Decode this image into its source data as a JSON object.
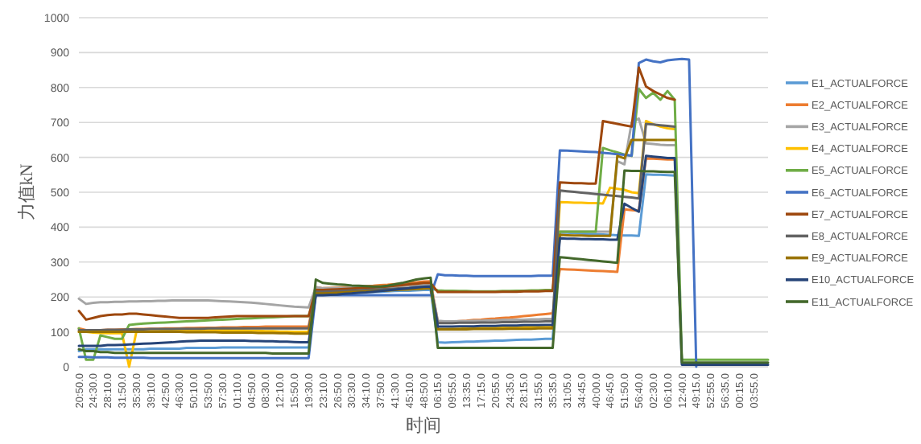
{
  "chart_data": {
    "type": "line",
    "xlabel": "时间",
    "ylabel": "力值kN",
    "categories": [
      "20:50.0",
      null,
      "24:30.0",
      null,
      "28:10.0",
      null,
      "31:50.0",
      null,
      "35:30.0",
      null,
      "39:10.0",
      null,
      "42:50.0",
      null,
      "46:30.0",
      null,
      "50:10.0",
      null,
      "53:50.0",
      null,
      "57:30.0",
      null,
      "01:10.0",
      null,
      "04:50.0",
      null,
      "08:30.0",
      null,
      "12:10.0",
      null,
      "15:50.0",
      null,
      "19:30.0",
      null,
      "23:10.0",
      null,
      "26:50.0",
      null,
      "30:30.0",
      null,
      "34:10.0",
      null,
      "37:50.0",
      null,
      "41:30.0",
      null,
      "45:10.0",
      null,
      "48:50.0",
      null,
      "06:15.0",
      null,
      "09:55.0",
      null,
      "13:35.0",
      null,
      "17:15.0",
      null,
      "20:55.0",
      null,
      "24:35.0",
      null,
      "28:15.0",
      null,
      "31:55.0",
      null,
      "35:35.0",
      null,
      "31:05.0",
      null,
      "34:45.0",
      null,
      "40:00.0",
      null,
      "46:45.0",
      null,
      "51:50.0",
      null,
      "56:40.0",
      null,
      "02:30.0",
      null,
      "06:10.0",
      null,
      "12:40.0",
      null,
      "49:15.0",
      null,
      "52:55.0",
      null,
      "56:35.0",
      null,
      "00:15.0",
      null,
      "03:55.0",
      null,
      null
    ],
    "series": [
      {
        "name": "E1_ACTUALFORCE",
        "color": "#5b9bd5",
        "values": [
          45,
          50,
          50,
          50,
          50,
          50,
          50,
          50,
          50,
          50,
          52,
          52,
          52,
          52,
          52,
          54,
          54,
          54,
          54,
          54,
          55,
          55,
          55,
          55,
          55,
          55,
          55,
          55,
          55,
          55,
          55,
          55,
          55,
          210,
          210,
          211,
          212,
          212,
          213,
          213,
          214,
          214,
          215,
          216,
          217,
          218,
          218,
          219,
          220,
          220,
          70,
          69,
          70,
          71,
          72,
          72,
          73,
          74,
          75,
          75,
          76,
          77,
          78,
          78,
          79,
          80,
          80,
          385,
          384,
          383,
          382,
          381,
          380,
          379,
          378,
          377,
          376,
          376,
          375,
          551,
          550,
          550,
          549,
          548,
          null,
          null,
          null,
          null,
          null,
          null,
          null,
          null,
          null,
          null,
          null,
          null,
          null
        ]
      },
      {
        "name": "E2_ACTUALFORCE",
        "color": "#ed7d31",
        "values": [
          110,
          105,
          105,
          105,
          106,
          106,
          107,
          107,
          108,
          108,
          109,
          109,
          110,
          110,
          110,
          111,
          111,
          112,
          112,
          112,
          113,
          113,
          113,
          114,
          114,
          114,
          115,
          115,
          115,
          115,
          115,
          115,
          115,
          228,
          225,
          226,
          227,
          228,
          229,
          230,
          231,
          232,
          234,
          235,
          237,
          238,
          240,
          242,
          244,
          245,
          127,
          128,
          129,
          131,
          132,
          134,
          135,
          137,
          138,
          140,
          141,
          143,
          145,
          147,
          149,
          151,
          153,
          280,
          279,
          278,
          277,
          276,
          275,
          274,
          273,
          272,
          451,
          449,
          447,
          597,
          596,
          595,
          594,
          594,
          null,
          null,
          null,
          null,
          null,
          null,
          null,
          null,
          null,
          null,
          null,
          null,
          null
        ]
      },
      {
        "name": "E3_ACTUALFORCE",
        "color": "#a5a5a5",
        "values": [
          195,
          180,
          183,
          185,
          185,
          186,
          186,
          187,
          187,
          188,
          188,
          189,
          189,
          190,
          190,
          190,
          190,
          190,
          190,
          189,
          188,
          187,
          186,
          185,
          184,
          182,
          180,
          178,
          176,
          174,
          172,
          171,
          170,
          228,
          225,
          225,
          226,
          226,
          227,
          227,
          228,
          229,
          229,
          230,
          231,
          232,
          233,
          234,
          235,
          235,
          132,
          130,
          130,
          131,
          131,
          132,
          132,
          133,
          133,
          134,
          134,
          135,
          135,
          136,
          136,
          137,
          137,
          387,
          387,
          387,
          387,
          387,
          387,
          387,
          387,
          589,
          580,
          700,
          711,
          640,
          638,
          636,
          635,
          635,
          null,
          null,
          null,
          null,
          null,
          null,
          null,
          null,
          null,
          null,
          null,
          null,
          null
        ]
      },
      {
        "name": "E4_ACTUALFORCE",
        "color": "#ffc000",
        "values": [
          100,
          100,
          98,
          97,
          96,
          96,
          96,
          0,
          100,
          101,
          102,
          102,
          103,
          103,
          104,
          104,
          105,
          105,
          105,
          105,
          105,
          105,
          104,
          104,
          103,
          103,
          102,
          102,
          101,
          101,
          100,
          100,
          100,
          210,
          210,
          211,
          212,
          213,
          214,
          215,
          216,
          217,
          218,
          219,
          220,
          221,
          222,
          223,
          224,
          225,
          108,
          108,
          109,
          109,
          110,
          110,
          111,
          111,
          112,
          112,
          113,
          113,
          114,
          114,
          115,
          115,
          116,
          472,
          471,
          470,
          470,
          469,
          469,
          468,
          513,
          510,
          507,
          500,
          497,
          704,
          695,
          688,
          683,
          681,
          null,
          null,
          null,
          null,
          null,
          null,
          null,
          null,
          null,
          null,
          null,
          null,
          null
        ]
      },
      {
        "name": "E5_ACTUALFORCE",
        "color": "#70ad47",
        "values": [
          110,
          20,
          20,
          90,
          85,
          80,
          80,
          120,
          122,
          124,
          125,
          126,
          127,
          128,
          129,
          130,
          131,
          132,
          133,
          134,
          135,
          136,
          137,
          138,
          139,
          140,
          141,
          142,
          143,
          144,
          145,
          145,
          145,
          215,
          215,
          216,
          217,
          217,
          218,
          219,
          219,
          220,
          221,
          221,
          222,
          223,
          223,
          224,
          225,
          225,
          219,
          218,
          218,
          217,
          217,
          216,
          216,
          216,
          216,
          217,
          217,
          218,
          218,
          219,
          219,
          220,
          220,
          387,
          387,
          387,
          387,
          387,
          387,
          627,
          620,
          614,
          608,
          604,
          796,
          770,
          785,
          765,
          790,
          765,
          20,
          20,
          20,
          20,
          20,
          20,
          20,
          20,
          20,
          20,
          20,
          20,
          20
        ]
      },
      {
        "name": "E6_ACTUALFORCE",
        "color": "#4472c4",
        "values": [
          28,
          28,
          27,
          27,
          27,
          26,
          26,
          26,
          26,
          26,
          25,
          25,
          25,
          25,
          25,
          25,
          25,
          25,
          25,
          25,
          25,
          25,
          25,
          25,
          25,
          25,
          25,
          25,
          25,
          25,
          25,
          25,
          25,
          205,
          205,
          205,
          205,
          205,
          205,
          205,
          205,
          205,
          205,
          205,
          205,
          205,
          205,
          205,
          205,
          205,
          265,
          262,
          262,
          261,
          261,
          260,
          260,
          260,
          260,
          260,
          260,
          260,
          260,
          260,
          261,
          261,
          261,
          620,
          619,
          618,
          617,
          616,
          615,
          613,
          611,
          609,
          607,
          605,
          870,
          880,
          875,
          872,
          878,
          880,
          882,
          880,
          0,
          null,
          null,
          null,
          null,
          null,
          null,
          null,
          null,
          null,
          null
        ]
      },
      {
        "name": "E7_ACTUALFORCE",
        "color": "#9e480e",
        "values": [
          160,
          135,
          140,
          145,
          148,
          150,
          150,
          152,
          152,
          150,
          148,
          146,
          144,
          142,
          140,
          140,
          140,
          140,
          140,
          142,
          143,
          144,
          145,
          145,
          145,
          145,
          145,
          145,
          145,
          145,
          145,
          145,
          145,
          220,
          220,
          221,
          222,
          223,
          224,
          225,
          226,
          227,
          228,
          230,
          232,
          234,
          236,
          238,
          240,
          240,
          214,
          214,
          214,
          214,
          214,
          214,
          214,
          214,
          214,
          215,
          215,
          215,
          216,
          216,
          216,
          217,
          217,
          528,
          527,
          526,
          526,
          525,
          525,
          704,
          700,
          696,
          692,
          688,
          857,
          803,
          790,
          780,
          770,
          765,
          null,
          null,
          null,
          null,
          null,
          null,
          null,
          null,
          null,
          null,
          null,
          null,
          null
        ]
      },
      {
        "name": "E8_ACTUALFORCE",
        "color": "#636363",
        "values": [
          105,
          105,
          105,
          105,
          106,
          106,
          106,
          107,
          107,
          107,
          108,
          108,
          108,
          108,
          109,
          109,
          109,
          109,
          110,
          110,
          110,
          110,
          110,
          110,
          110,
          110,
          110,
          110,
          110,
          110,
          110,
          110,
          110,
          215,
          215,
          216,
          217,
          218,
          219,
          219,
          220,
          221,
          222,
          223,
          224,
          225,
          226,
          228,
          229,
          230,
          125,
          125,
          125,
          126,
          126,
          126,
          127,
          127,
          127,
          128,
          128,
          128,
          129,
          129,
          129,
          130,
          130,
          505,
          503,
          501,
          499,
          497,
          495,
          493,
          491,
          489,
          487,
          485,
          482,
          696,
          694,
          692,
          690,
          688,
          null,
          null,
          null,
          null,
          null,
          null,
          null,
          null,
          null,
          null,
          null,
          null,
          null
        ]
      },
      {
        "name": "E9_ACTUALFORCE",
        "color": "#997300",
        "values": [
          100,
          100,
          100,
          100,
          100,
          100,
          100,
          100,
          100,
          100,
          100,
          100,
          100,
          100,
          100,
          99,
          99,
          99,
          99,
          99,
          98,
          98,
          98,
          98,
          98,
          97,
          97,
          97,
          96,
          96,
          95,
          95,
          95,
          210,
          210,
          211,
          212,
          213,
          214,
          215,
          216,
          217,
          218,
          219,
          220,
          221,
          222,
          223,
          224,
          225,
          107,
          107,
          107,
          107,
          107,
          108,
          108,
          108,
          108,
          108,
          109,
          109,
          109,
          109,
          110,
          110,
          110,
          378,
          377,
          376,
          376,
          375,
          375,
          375,
          375,
          604,
          597,
          650,
          650,
          650,
          650,
          650,
          650,
          650,
          null,
          null,
          null,
          null,
          null,
          null,
          null,
          null,
          null,
          null,
          null,
          null,
          null
        ]
      },
      {
        "name": "E10_ACTUALFORCE",
        "color": "#264478",
        "values": [
          60,
          60,
          60,
          60,
          62,
          62,
          63,
          64,
          65,
          66,
          67,
          68,
          69,
          70,
          72,
          73,
          74,
          75,
          75,
          75,
          75,
          75,
          75,
          75,
          74,
          74,
          73,
          73,
          72,
          72,
          71,
          70,
          70,
          205,
          205,
          206,
          207,
          209,
          210,
          212,
          213,
          215,
          217,
          219,
          221,
          223,
          225,
          227,
          229,
          230,
          115,
          115,
          115,
          116,
          116,
          116,
          117,
          117,
          117,
          118,
          118,
          118,
          119,
          119,
          119,
          120,
          120,
          368,
          367,
          367,
          366,
          366,
          365,
          365,
          364,
          364,
          467,
          455,
          444,
          604,
          602,
          600,
          598,
          598,
          6,
          6,
          6,
          6,
          6,
          6,
          6,
          6,
          6,
          6,
          6,
          6,
          6
        ]
      },
      {
        "name": "E11_ACTUALFORCE",
        "color": "#43682b",
        "values": [
          50,
          45,
          45,
          42,
          42,
          40,
          40,
          40,
          40,
          40,
          40,
          40,
          40,
          40,
          40,
          40,
          40,
          40,
          40,
          40,
          40,
          40,
          40,
          40,
          40,
          40,
          40,
          38,
          38,
          38,
          38,
          38,
          38,
          250,
          240,
          238,
          236,
          235,
          233,
          232,
          231,
          230,
          230,
          232,
          236,
          240,
          245,
          250,
          253,
          255,
          54,
          54,
          54,
          54,
          54,
          54,
          54,
          54,
          54,
          54,
          54,
          54,
          54,
          54,
          54,
          54,
          54,
          314,
          312,
          310,
          308,
          306,
          304,
          302,
          300,
          298,
          562,
          561,
          561,
          560,
          560,
          559,
          558,
          558,
          12,
          12,
          12,
          12,
          12,
          12,
          12,
          12,
          12,
          12,
          12,
          12,
          12
        ]
      }
    ],
    "ylim": [
      0,
      1000
    ],
    "yticks": [
      0,
      100,
      200,
      300,
      400,
      500,
      600,
      700,
      800,
      900,
      1000
    ],
    "grid": "y",
    "legend": "right",
    "marker": "none",
    "line_style": "solid"
  }
}
